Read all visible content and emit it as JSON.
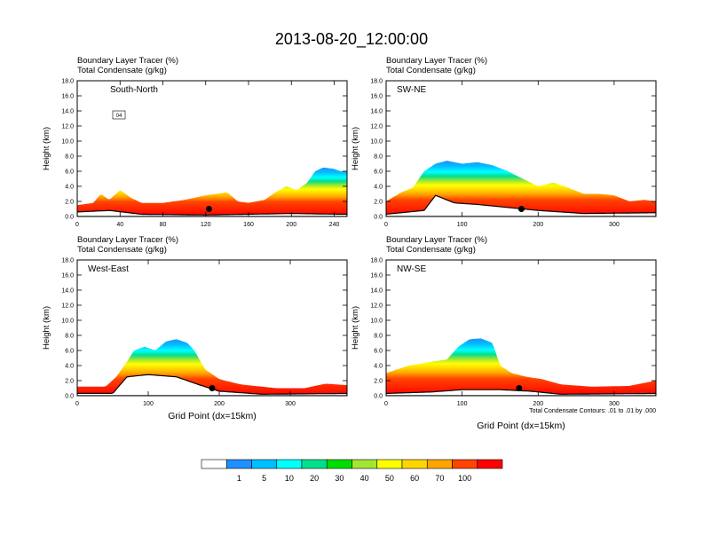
{
  "title": "2013-08-20_12:00:00",
  "panel_header": {
    "line1": "Boundary Layer Tracer   (%)",
    "line2": "Total Condensate   (g/kg)"
  },
  "y_axis_label": "Height (km)",
  "x_axis_label": "Grid Point (dx=15km)",
  "contour_note": "Total Condensate Contours: .01 to .01 by .000",
  "colorbar": {
    "colors": [
      "#ffffff",
      "#1e90ff",
      "#00bfff",
      "#00ffff",
      "#00e08c",
      "#00dd00",
      "#a0e632",
      "#ffff00",
      "#ffd700",
      "#ffa500",
      "#ff4500",
      "#ff0000"
    ],
    "labels": [
      "1",
      "5",
      "10",
      "20",
      "30",
      "40",
      "50",
      "60",
      "70",
      "100"
    ]
  },
  "chart_data": [
    {
      "type": "heatmap",
      "label": "South-North",
      "xlim": [
        0,
        252
      ],
      "ylim": [
        0,
        18
      ],
      "x_ticks": [
        "0",
        "40",
        "80",
        "120",
        "160",
        "200",
        "240"
      ],
      "x_tick_values": [
        0,
        40,
        80,
        120,
        160,
        200,
        240
      ],
      "y_ticks": [
        "0.0",
        "2.0",
        "4.0",
        "6.0",
        "8.0",
        "10.0",
        "12.0",
        "14.0",
        "16.0",
        "18.0"
      ],
      "tracer_top_km": [
        [
          0,
          1.5
        ],
        [
          15,
          1.8
        ],
        [
          22,
          3.0
        ],
        [
          30,
          2.2
        ],
        [
          40,
          3.5
        ],
        [
          50,
          2.5
        ],
        [
          60,
          1.8
        ],
        [
          80,
          1.8
        ],
        [
          100,
          2.2
        ],
        [
          120,
          2.8
        ],
        [
          140,
          3.2
        ],
        [
          150,
          2.0
        ],
        [
          160,
          1.8
        ],
        [
          175,
          2.2
        ],
        [
          185,
          3.2
        ],
        [
          195,
          4.0
        ],
        [
          205,
          3.5
        ],
        [
          215,
          4.5
        ],
        [
          222,
          6.0
        ],
        [
          230,
          6.5
        ],
        [
          240,
          6.3
        ],
        [
          246,
          6.0
        ]
      ],
      "terrain_km": [
        [
          0,
          0.6
        ],
        [
          30,
          0.8
        ],
        [
          60,
          0.3
        ],
        [
          120,
          0.2
        ],
        [
          200,
          0.4
        ],
        [
          246,
          0.3
        ]
      ],
      "marker": [
        123,
        1.0
      ],
      "annotation": "04"
    },
    {
      "type": "heatmap",
      "label": "SW-NE",
      "xlim": [
        0,
        355
      ],
      "ylim": [
        0,
        18
      ],
      "x_ticks": [
        "0",
        "100",
        "200",
        "300"
      ],
      "x_tick_values": [
        0,
        100,
        200,
        300
      ],
      "y_ticks": [
        "0.0",
        "2.0",
        "4.0",
        "6.0",
        "8.0",
        "10.0",
        "12.0",
        "14.0",
        "16.0",
        "18.0"
      ],
      "tracer_top_km": [
        [
          0,
          2.0
        ],
        [
          20,
          3.2
        ],
        [
          35,
          3.8
        ],
        [
          50,
          6.0
        ],
        [
          65,
          7.0
        ],
        [
          80,
          7.4
        ],
        [
          100,
          7.0
        ],
        [
          120,
          7.2
        ],
        [
          140,
          6.8
        ],
        [
          160,
          6.0
        ],
        [
          180,
          5.0
        ],
        [
          200,
          4.0
        ],
        [
          220,
          4.5
        ],
        [
          240,
          3.8
        ],
        [
          260,
          3.0
        ],
        [
          280,
          3.0
        ],
        [
          300,
          2.8
        ],
        [
          320,
          2.0
        ],
        [
          340,
          2.2
        ],
        [
          355,
          2.0
        ]
      ],
      "terrain_km": [
        [
          0,
          0.3
        ],
        [
          50,
          0.8
        ],
        [
          65,
          2.8
        ],
        [
          90,
          1.8
        ],
        [
          120,
          1.6
        ],
        [
          160,
          1.2
        ],
        [
          200,
          0.8
        ],
        [
          260,
          0.4
        ],
        [
          355,
          0.5
        ]
      ],
      "marker": [
        178,
        1.0
      ],
      "annotation": ""
    },
    {
      "type": "heatmap",
      "label": "West-East",
      "xlim": [
        0,
        380
      ],
      "ylim": [
        0,
        18
      ],
      "x_ticks": [
        "0",
        "100",
        "200",
        "300"
      ],
      "x_tick_values": [
        0,
        100,
        200,
        300
      ],
      "y_ticks": [
        "0.0",
        "2.0",
        "4.0",
        "6.0",
        "8.0",
        "10.0",
        "12.0",
        "14.0",
        "16.0",
        "18.0"
      ],
      "tracer_top_km": [
        [
          0,
          1.2
        ],
        [
          40,
          1.2
        ],
        [
          55,
          2.5
        ],
        [
          70,
          4.5
        ],
        [
          80,
          6.0
        ],
        [
          95,
          6.5
        ],
        [
          110,
          6.0
        ],
        [
          125,
          7.2
        ],
        [
          140,
          7.5
        ],
        [
          155,
          7.0
        ],
        [
          165,
          6.0
        ],
        [
          180,
          3.5
        ],
        [
          200,
          2.2
        ],
        [
          230,
          1.5
        ],
        [
          280,
          1.0
        ],
        [
          320,
          1.0
        ],
        [
          350,
          1.6
        ],
        [
          380,
          1.4
        ]
      ],
      "terrain_km": [
        [
          0,
          0.3
        ],
        [
          50,
          0.3
        ],
        [
          70,
          2.5
        ],
        [
          100,
          2.8
        ],
        [
          140,
          2.5
        ],
        [
          170,
          1.5
        ],
        [
          200,
          0.6
        ],
        [
          260,
          0.2
        ],
        [
          380,
          0.3
        ]
      ],
      "marker": [
        190,
        1.0
      ],
      "annotation": ""
    },
    {
      "type": "heatmap",
      "label": "NW-SE",
      "xlim": [
        0,
        355
      ],
      "ylim": [
        0,
        18
      ],
      "x_ticks": [
        "0",
        "100",
        "200",
        "300"
      ],
      "x_tick_values": [
        0,
        100,
        200,
        300
      ],
      "y_ticks": [
        "0.0",
        "2.0",
        "4.0",
        "6.0",
        "8.0",
        "10.0",
        "12.0",
        "14.0",
        "16.0",
        "18.0"
      ],
      "tracer_top_km": [
        [
          0,
          3.0
        ],
        [
          30,
          4.0
        ],
        [
          60,
          4.5
        ],
        [
          80,
          4.8
        ],
        [
          95,
          6.5
        ],
        [
          110,
          7.5
        ],
        [
          125,
          7.6
        ],
        [
          140,
          7.0
        ],
        [
          150,
          4.0
        ],
        [
          165,
          3.0
        ],
        [
          185,
          2.5
        ],
        [
          205,
          2.2
        ],
        [
          230,
          1.5
        ],
        [
          270,
          1.2
        ],
        [
          320,
          1.3
        ],
        [
          355,
          2.0
        ]
      ],
      "terrain_km": [
        [
          0,
          0.3
        ],
        [
          60,
          0.5
        ],
        [
          100,
          0.8
        ],
        [
          150,
          0.8
        ],
        [
          190,
          0.6
        ],
        [
          230,
          0.2
        ],
        [
          355,
          0.3
        ]
      ],
      "marker": [
        175,
        1.0
      ],
      "annotation": ""
    }
  ]
}
